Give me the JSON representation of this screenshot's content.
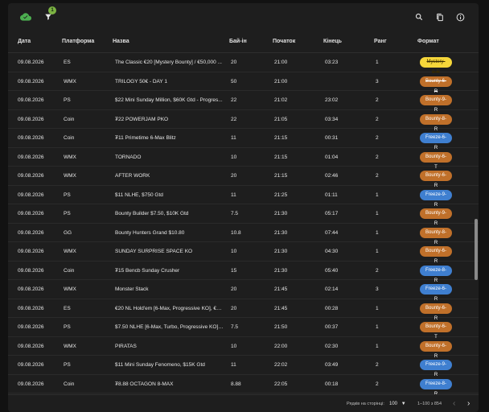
{
  "toolbar": {
    "filter_count": "1",
    "icons": [
      "cloud-check-icon",
      "filter-icon",
      "search-icon",
      "copy-icon",
      "info-icon"
    ],
    "cloud_color": "#4caf50"
  },
  "table": {
    "headers": [
      "Дата",
      "Платформа",
      "Назва",
      "Бай-ін",
      "Початок",
      "Кінець",
      "Ранг",
      "Формат"
    ],
    "rows": [
      {
        "date": "09.08.2026",
        "platform": "ES",
        "name": "The Classic €20 [Mystery Bounty] / €50,000 ...",
        "buyin": "20",
        "start": "21:00",
        "end": "03:23",
        "rank": "1",
        "format": "Mystery-9-R",
        "color": "yellow",
        "strike": true
      },
      {
        "date": "09.08.2026",
        "platform": "WMX",
        "name": "TRILOGY 50€ - DAY 1",
        "buyin": "50",
        "start": "21:00",
        "end": "",
        "rank": "3",
        "format": "Bounty-6-R",
        "color": "orange",
        "strike": true
      },
      {
        "date": "09.08.2026",
        "platform": "PS",
        "name": "$22 Mini Sunday Million, $60K Gtd - Progres...",
        "buyin": "22",
        "start": "21:02",
        "end": "23:02",
        "rank": "2",
        "format": "Bounty-9-R",
        "color": "orange",
        "strike": false
      },
      {
        "date": "09.08.2026",
        "platform": "Coin",
        "name": "₮22 POWERJAM PKO",
        "buyin": "22",
        "start": "21:05",
        "end": "03:34",
        "rank": "2",
        "format": "Bounty-8-R",
        "color": "orange",
        "strike": false
      },
      {
        "date": "09.08.2026",
        "platform": "Coin",
        "name": "₮11 Primetime 6-Max Blitz",
        "buyin": "11",
        "start": "21:15",
        "end": "00:31",
        "rank": "2",
        "format": "Freeze-6-R",
        "color": "blue",
        "strike": false
      },
      {
        "date": "09.08.2026",
        "platform": "WMX",
        "name": "TORNADO",
        "buyin": "10",
        "start": "21:15",
        "end": "01:04",
        "rank": "2",
        "format": "Bounty-6-T",
        "color": "orange",
        "strike": false
      },
      {
        "date": "09.08.2026",
        "platform": "WMX",
        "name": "AFTER WORK",
        "buyin": "20",
        "start": "21:15",
        "end": "02:46",
        "rank": "2",
        "format": "Bounty-6-R",
        "color": "orange",
        "strike": false
      },
      {
        "date": "09.08.2026",
        "platform": "PS",
        "name": "$11 NLHE, $750 Gtd",
        "buyin": "11",
        "start": "21:25",
        "end": "01:11",
        "rank": "1",
        "format": "Freeze-9-R",
        "color": "blue",
        "strike": false
      },
      {
        "date": "09.08.2026",
        "platform": "PS",
        "name": "Bounty Builder $7.50, $10K Gtd",
        "buyin": "7.5",
        "start": "21:30",
        "end": "05:17",
        "rank": "1",
        "format": "Bounty-9-R",
        "color": "orange",
        "strike": false
      },
      {
        "date": "09.08.2026",
        "platform": "GG",
        "name": "Bounty Hunters Grand $10.80",
        "buyin": "10.8",
        "start": "21:30",
        "end": "07:44",
        "rank": "1",
        "format": "Bounty-8-R",
        "color": "orange",
        "strike": false
      },
      {
        "date": "09.08.2026",
        "platform": "WMX",
        "name": "SUNDAY SURPRISE SPACE KO",
        "buyin": "10",
        "start": "21:30",
        "end": "04:30",
        "rank": "1",
        "format": "Bounty-6-R",
        "color": "orange",
        "strike": false
      },
      {
        "date": "09.08.2026",
        "platform": "Coin",
        "name": "₮15 Bencb Sunday Crusher",
        "buyin": "15",
        "start": "21:30",
        "end": "05:40",
        "rank": "2",
        "format": "Freeze-8-R",
        "color": "blue",
        "strike": false
      },
      {
        "date": "09.08.2026",
        "platform": "WMX",
        "name": "Monster Stack",
        "buyin": "20",
        "start": "21:45",
        "end": "02:14",
        "rank": "3",
        "format": "Freeze-6-R",
        "color": "blue",
        "strike": false
      },
      {
        "date": "09.08.2026",
        "platform": "ES",
        "name": "€20 NL Hold'em [6-Max, Progressive KO], €4...",
        "buyin": "20",
        "start": "21:45",
        "end": "00:28",
        "rank": "1",
        "format": "Bounty-6-R",
        "color": "orange",
        "strike": false
      },
      {
        "date": "09.08.2026",
        "platform": "PS",
        "name": "$7.50 NLHE [6-Max, Turbo, Progressive KO],...",
        "buyin": "7.5",
        "start": "21:50",
        "end": "00:37",
        "rank": "1",
        "format": "Bounty-6-T",
        "color": "orange",
        "strike": false
      },
      {
        "date": "09.08.2026",
        "platform": "WMX",
        "name": "PIRATAS",
        "buyin": "10",
        "start": "22:00",
        "end": "02:30",
        "rank": "1",
        "format": "Bounty-6-R",
        "color": "orange",
        "strike": false
      },
      {
        "date": "09.08.2026",
        "platform": "PS",
        "name": "$11 Mini Sunday Fenomeno, $15K Gtd",
        "buyin": "11",
        "start": "22:02",
        "end": "03:49",
        "rank": "2",
        "format": "Freeze-9-R",
        "color": "blue",
        "strike": false
      },
      {
        "date": "09.08.2026",
        "platform": "Coin",
        "name": "₮8.88 OCTAGON 8-MAX",
        "buyin": "8.88",
        "start": "22:05",
        "end": "00:18",
        "rank": "2",
        "format": "Freeze-8-R",
        "color": "blue",
        "strike": false
      }
    ]
  },
  "footer": {
    "rows_per_page_label": "Рядків на сторінці:",
    "rows_per_page_value": "100",
    "range": "1–100 з 854"
  }
}
